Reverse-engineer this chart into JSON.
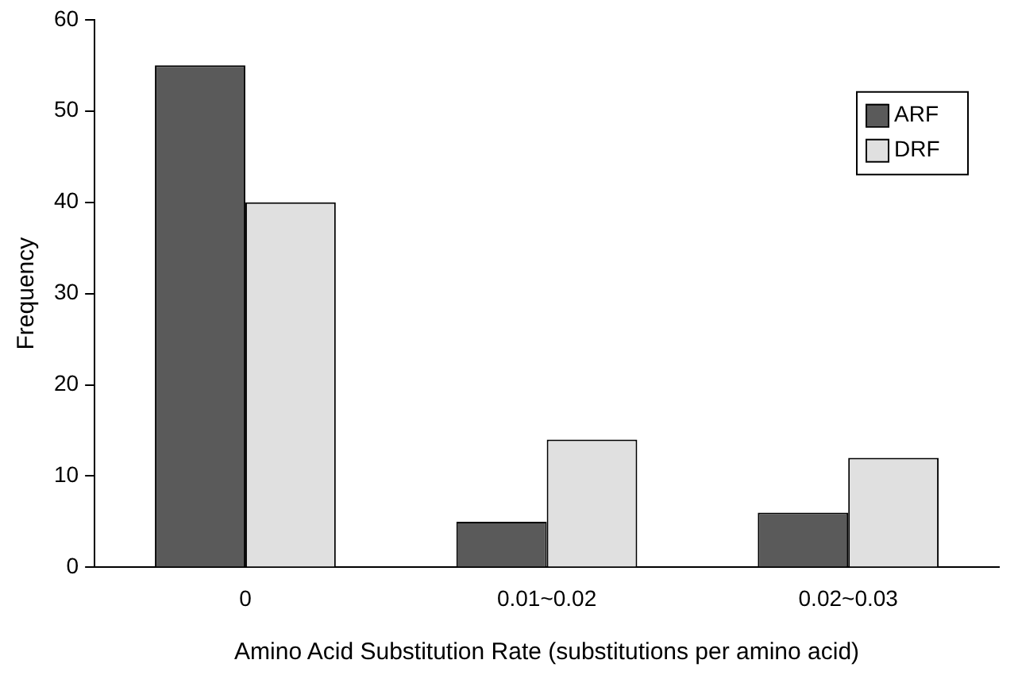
{
  "chart_data": {
    "type": "bar",
    "xlabel": "Amino Acid Substitution Rate (substitutions per amino acid)",
    "ylabel": "Frequency",
    "categories": [
      "0",
      "0.01~0.02",
      "0.02~0.03"
    ],
    "series": [
      {
        "name": "ARF",
        "color": "#5a5a5a",
        "values": [
          55,
          5,
          6
        ]
      },
      {
        "name": "DRF",
        "color": "#e0e0e0",
        "values": [
          40,
          14,
          12
        ]
      }
    ],
    "ylim": [
      0,
      60
    ],
    "yticks": [
      0,
      10,
      20,
      30,
      40,
      50,
      60
    ],
    "grid": false,
    "legend": "top right"
  }
}
